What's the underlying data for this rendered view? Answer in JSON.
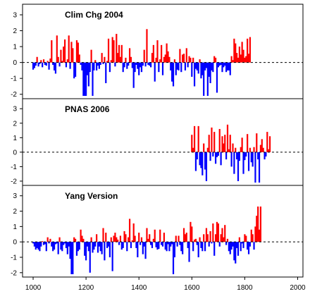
{
  "colors": {
    "positive": "#ff0000",
    "negative": "#0000ff",
    "axis": "#000000",
    "zero_line": "#000000"
  },
  "chart_data": [
    {
      "type": "bar",
      "title": "Clim Chg 2004",
      "xlabel": "",
      "ylabel": "",
      "xlim": [
        960,
        2020
      ],
      "ylim": [
        -2.1,
        3.4
      ],
      "yticks": [
        -2,
        -1,
        0,
        1,
        2,
        3
      ],
      "zero_line": "dashed",
      "grid": false,
      "x_start": 1000,
      "x_step": 5,
      "values": [
        -0.45,
        -0.35,
        -0.2,
        0.35,
        -0.25,
        -0.1,
        0.15,
        -0.3,
        0.2,
        -0.15,
        -0.2,
        0.1,
        -0.45,
        0.25,
        1.4,
        -0.15,
        -0.5,
        -0.7,
        1.7,
        0.35,
        -0.25,
        0.8,
        0.1,
        1.0,
        1.45,
        -0.3,
        0.2,
        1.7,
        -0.4,
        1.3,
        0.9,
        -1.0,
        -0.9,
        1.4,
        1.25,
        0.5,
        -0.15,
        -0.5,
        -2.1,
        -2.1,
        -2.1,
        -0.8,
        -1.5,
        -0.6,
        0.8,
        -2.1,
        -0.5,
        0.15,
        -0.5,
        -0.2,
        -0.4,
        -0.15,
        0.6,
        -0.1,
        0.35,
        -1.3,
        0.1,
        1.5,
        -0.6,
        0.15,
        1.6,
        1.4,
        -0.25,
        1.8,
        0.6,
        1.1,
        0.35,
        1.1,
        -0.6,
        -0.3,
        0.3,
        -0.4,
        -0.2,
        0.9,
        0.35,
        -0.35,
        -1.6,
        -0.6,
        -0.15,
        -0.4,
        -0.8,
        -0.3,
        -0.6,
        -0.2,
        0.8,
        -0.25,
        2.1,
        -0.15,
        -0.2,
        -0.3,
        0.6,
        1.1,
        -1.2,
        0.3,
        1.4,
        -0.6,
        0.2,
        1.1,
        -0.8,
        0.35,
        0.5,
        1.2,
        0.7,
        0.35,
        -0.5,
        -1.2,
        -1.5,
        0.2,
        -0.8,
        -0.45,
        -0.5,
        0.85,
        -0.6,
        0.5,
        0.55,
        -0.5,
        0.9,
        -0.3,
        0.4,
        0.3,
        -0.9,
        0.3,
        -1.5,
        -0.4,
        -0.5,
        -0.7,
        0.2,
        -1.0,
        -0.8,
        -2.1,
        -0.5,
        -0.35,
        -2.1,
        -0.9,
        -1.3,
        -0.5,
        -0.6,
        0.4,
        0.3,
        -1.9,
        -0.3,
        -0.2,
        -0.15,
        -0.6,
        -0.3,
        -0.2,
        -0.6,
        -0.5,
        -0.5,
        -0.8,
        0.4,
        0.15,
        1.5,
        1.2,
        0.6,
        0.3,
        1.0,
        0.5,
        1.3,
        0.8,
        0.3,
        0.4,
        1.5,
        0.55,
        1.6
      ]
    },
    {
      "type": "bar",
      "title": "PNAS 2006",
      "xlabel": "",
      "ylabel": "",
      "xlim": [
        960,
        2020
      ],
      "ylim": [
        -2.1,
        3.4
      ],
      "yticks": [
        -2,
        -1,
        0,
        1,
        2,
        3
      ],
      "zero_line": "dashed",
      "grid": false,
      "x_start": 1600,
      "x_step": 5,
      "values": [
        1.2,
        0.3,
        1.8,
        -1.3,
        -0.5,
        1.8,
        -0.9,
        -1.1,
        -1.6,
        0.6,
        -1.2,
        -2.0,
        0.3,
        1.2,
        -0.6,
        1.7,
        -0.3,
        1.4,
        -0.8,
        -0.35,
        -0.25,
        1.6,
        -0.9,
        1.1,
        0.6,
        1.2,
        -0.5,
        1.9,
        0.2,
        1.2,
        -1.0,
        0.6,
        -1.5,
        0.3,
        -0.5,
        -2.0,
        -0.6,
        0.35,
        1.0,
        -1.5,
        -0.55,
        -0.3,
        1.25,
        -1.3,
        0.3,
        -0.7,
        -1.0,
        0.35,
        -2.1,
        1.3,
        -0.5,
        -2.1,
        0.5,
        0.9,
        0.3,
        -0.5,
        -0.3,
        1.4,
        0.2,
        1.1
      ]
    },
    {
      "type": "bar",
      "title": "Yang Version",
      "xlabel": "",
      "ylabel": "",
      "xlim": [
        960,
        2020
      ],
      "ylim": [
        -2.1,
        3.4
      ],
      "yticks": [
        -2,
        -1,
        0,
        1,
        2,
        3
      ],
      "zero_line": "dashed",
      "grid": false,
      "x_start": 1000,
      "x_step": 5,
      "values": [
        -0.1,
        -0.3,
        -0.5,
        -0.4,
        -0.5,
        -0.6,
        -0.3,
        0.05,
        -0.2,
        -0.15,
        -0.6,
        0.3,
        -0.1,
        0.2,
        -0.3,
        -0.6,
        -0.5,
        -0.15,
        -0.1,
        -0.8,
        0.3,
        -0.5,
        -0.6,
        -0.2,
        -0.1,
        -0.4,
        -0.8,
        -0.3,
        -1.1,
        -2.1,
        -2.1,
        0.3,
        0.2,
        -0.9,
        -0.6,
        -0.5,
        0.8,
        0.4,
        0.2,
        -0.9,
        -1.2,
        -0.3,
        -0.6,
        -2.0,
        0.3,
        -0.7,
        -0.5,
        -0.3,
        0.5,
        -0.7,
        -0.3,
        -0.6,
        -0.8,
        0.9,
        -1.2,
        0.6,
        -0.4,
        -0.3,
        -1.0,
        0.3,
        -1.9,
        0.4,
        0.6,
        0.3,
        0.15,
        -0.2,
        0.4,
        -0.5,
        -0.4,
        0.7,
        0.5,
        -0.6,
        0.3,
        1.5,
        -0.4,
        0.1,
        1.2,
        0.4,
        -0.4,
        -1.0,
        0.6,
        -0.2,
        0.3,
        -0.8,
        -0.3,
        -1.1,
        0.9,
        0.2,
        0.5,
        -0.2,
        -0.4,
        0.2,
        0.8,
        -0.35,
        -0.5,
        -0.45,
        0.8,
        -0.2,
        -0.3,
        0.6,
        -0.5,
        -0.6,
        -0.15,
        -0.6,
        -0.3,
        -0.15,
        -2.1,
        -1.0,
        0.4,
        -0.3,
        0.4,
        -0.2,
        -0.6,
        -0.8,
        0.9,
        0.5,
        0.6,
        -0.4,
        -1.3,
        1.3,
        1.0,
        -0.6,
        0.15,
        0.2,
        -0.2,
        -1.0,
        0.3,
        -0.4,
        -0.6,
        0.5,
        -0.6,
        0.9,
        0.5,
        -0.3,
        0.7,
        -0.1,
        1.2,
        -0.9,
        0.5,
        1.3,
        1.2,
        -0.3,
        0.5,
        0.9,
        0.3,
        1.1,
        -0.2,
        0.2,
        -0.6,
        -0.8,
        -0.5,
        -0.3,
        -1.2,
        -1.4,
        -0.4,
        -0.9,
        0.3,
        -0.6,
        -0.1,
        -0.4,
        0.5,
        0.4,
        -0.5,
        -0.8,
        -0.3,
        0.8,
        0.5,
        -0.5,
        1.0,
        1.7,
        2.3,
        0.8,
        2.3
      ]
    }
  ],
  "x_axis": {
    "ticks": [
      1000,
      1200,
      1400,
      1600,
      1800,
      2000
    ]
  }
}
